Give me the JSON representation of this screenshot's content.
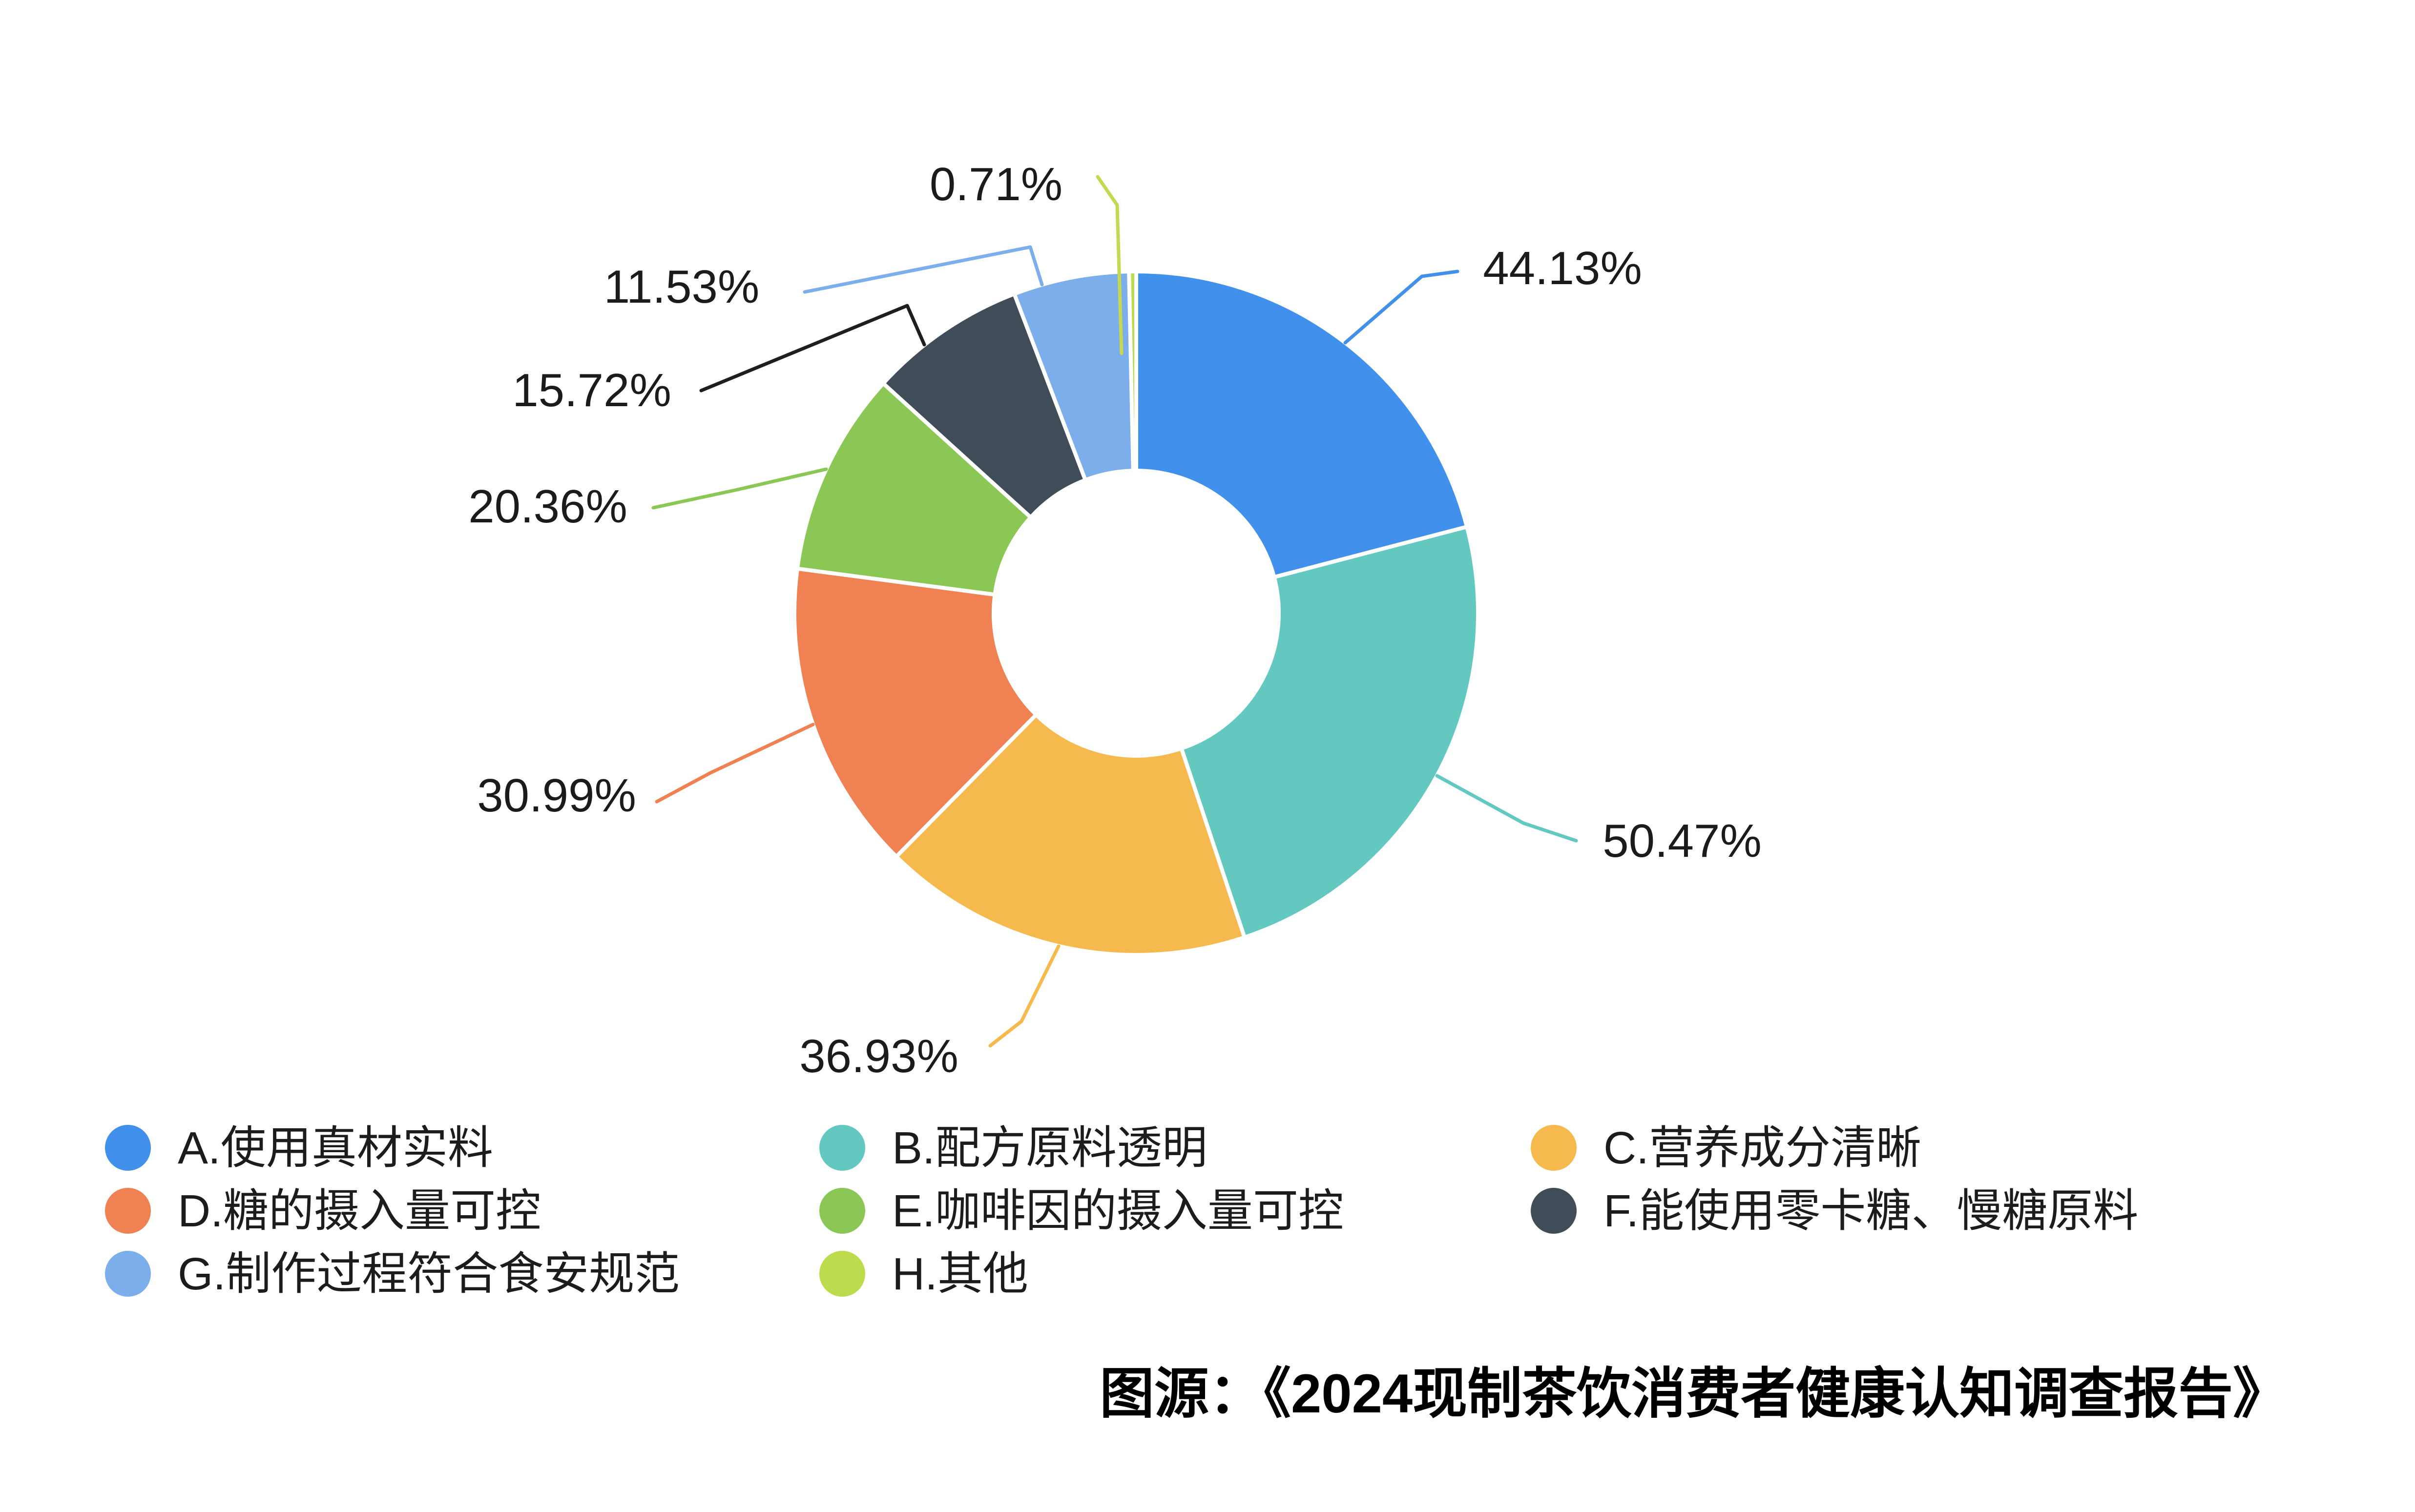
{
  "chart_data": {
    "type": "pie",
    "variant": "donut",
    "title": "",
    "legend_position": "bottom",
    "unit": "%",
    "source_note": "图源：《2024现制茶饮消费者健康认知调查报告》",
    "slices": [
      {
        "id": "A",
        "label": "A.使用真材实料",
        "value": 44.13,
        "display": "44.13%",
        "color": "#4190EC"
      },
      {
        "id": "B",
        "label": "B.配方原料透明",
        "value": 50.47,
        "display": "50.47%",
        "color": "#62C8C0"
      },
      {
        "id": "C",
        "label": "C.营养成分清晰",
        "value": 36.93,
        "display": "36.93%",
        "color": "#F5B94E"
      },
      {
        "id": "D",
        "label": "D.糖的摄入量可控",
        "value": 30.99,
        "display": "30.99%",
        "color": "#EF8152"
      },
      {
        "id": "E",
        "label": "E.咖啡因的摄入量可控",
        "value": 20.36,
        "display": "20.36%",
        "color": "#8BC754"
      },
      {
        "id": "F",
        "label": "F.能使用零卡糖、慢糖原料",
        "value": 15.72,
        "display": "15.72%",
        "color": "#404D59",
        "leader_color": "#1E1E1E"
      },
      {
        "id": "G",
        "label": "G.制作过程符合食安规范",
        "value": 11.53,
        "display": "11.53%",
        "color": "#7BAEEA"
      },
      {
        "id": "H",
        "label": "H.其他",
        "value": 0.71,
        "display": "0.71%",
        "color": "#BCDC4E",
        "leader_color": "#C4D94F"
      }
    ]
  }
}
